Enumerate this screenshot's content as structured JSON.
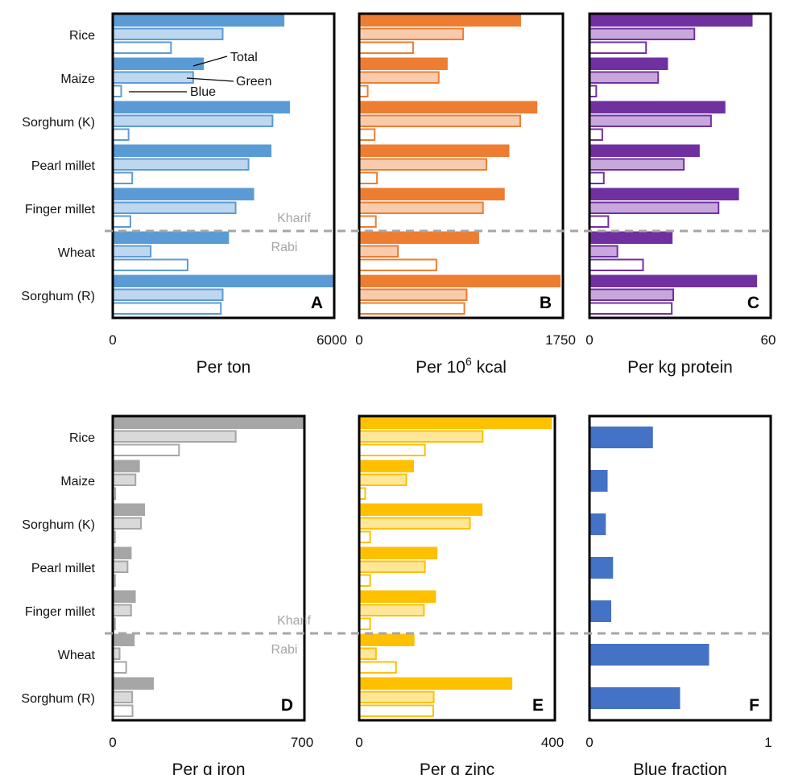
{
  "crops": [
    "Rice",
    "Maize",
    "Sorghum (K)",
    "Pearl millet",
    "Finger millet",
    "Wheat",
    "Sorghum (R)"
  ],
  "season_labels": {
    "kharif": "Kharif",
    "rabi": "Rabi"
  },
  "legend": {
    "total": "Total",
    "green": "Green",
    "blue": "Blue"
  },
  "chart_data": [
    {
      "panel": "A",
      "type": "bar",
      "orientation": "horizontal",
      "xlabel": "Per ton",
      "xlim": [
        0,
        6000
      ],
      "tick_labels": [
        "0",
        "6000"
      ],
      "color": "#5b9bd5",
      "light": "#bdd7ee",
      "series": [
        {
          "name": "Total",
          "values": [
            4650,
            2470,
            4800,
            4300,
            3830,
            3150,
            5970
          ]
        },
        {
          "name": "Green",
          "values": [
            3000,
            2200,
            4350,
            3700,
            3350,
            1050,
            3000
          ]
        },
        {
          "name": "Blue",
          "values": [
            1600,
            250,
            450,
            550,
            500,
            2050,
            2950
          ]
        }
      ]
    },
    {
      "panel": "B",
      "type": "bar",
      "orientation": "horizontal",
      "xlabel": "Per 10⁶ kcal",
      "xlim": [
        0,
        1750
      ],
      "tick_labels": [
        "0",
        "1750"
      ],
      "color": "#ed7d31",
      "light": "#f8cbad",
      "series": [
        {
          "name": "Total",
          "values": [
            1390,
            760,
            1530,
            1290,
            1250,
            1030,
            1730
          ]
        },
        {
          "name": "Green",
          "values": [
            900,
            690,
            1390,
            1100,
            1070,
            340,
            930
          ]
        },
        {
          "name": "Blue",
          "values": [
            470,
            80,
            140,
            160,
            150,
            670,
            910
          ]
        }
      ]
    },
    {
      "panel": "C",
      "type": "bar",
      "orientation": "horizontal",
      "xlabel": "Per kg protein",
      "xlim": [
        0,
        60
      ],
      "tick_labels": [
        "0",
        "60"
      ],
      "color": "#7030a0",
      "light": "#c8a8dc",
      "series": [
        {
          "name": "Total",
          "values": [
            54,
            26,
            45,
            36.5,
            49.5,
            27.5,
            55.5
          ]
        },
        {
          "name": "Green",
          "values": [
            35,
            23,
            40.5,
            31.5,
            43,
            9.5,
            28
          ]
        },
        {
          "name": "Blue",
          "values": [
            19,
            2.5,
            4.5,
            5,
            6.5,
            18,
            27.5
          ]
        }
      ]
    },
    {
      "panel": "D",
      "type": "bar",
      "orientation": "horizontal",
      "xlabel": "Per g iron",
      "xlim": [
        0,
        700
      ],
      "tick_labels": [
        "0",
        "700"
      ],
      "color": "#a6a6a6",
      "light": "#d9d9d9",
      "series": [
        {
          "name": "Total",
          "values": [
            697,
            99,
            118,
            69,
            84,
            80,
            150
          ]
        },
        {
          "name": "Green",
          "values": [
            452,
            86,
            106,
            57,
            70,
            28,
            74
          ]
        },
        {
          "name": "Blue",
          "values": [
            245,
            12,
            11,
            11,
            11,
            52,
            75
          ]
        }
      ]
    },
    {
      "panel": "E",
      "type": "bar",
      "orientation": "horizontal",
      "xlabel": "Per g zinc",
      "xlim": [
        0,
        400
      ],
      "tick_labels": [
        "0",
        "400"
      ],
      "color": "#ffc000",
      "light": "#ffe699",
      "series": [
        {
          "name": "Total",
          "values": [
            394,
            112,
            252,
            160,
            157,
            113,
            313
          ]
        },
        {
          "name": "Green",
          "values": [
            254,
            98,
            228,
            136,
            134,
            36,
            154
          ]
        },
        {
          "name": "Blue",
          "values": [
            136,
            14,
            24,
            24,
            24,
            77,
            153
          ]
        }
      ]
    },
    {
      "panel": "F",
      "type": "bar",
      "orientation": "horizontal",
      "xlabel": "Blue fraction",
      "xlim": [
        0,
        1
      ],
      "tick_labels": [
        "0",
        "1"
      ],
      "color": "#4472c4",
      "series": [
        {
          "name": "Blue fraction",
          "values": [
            0.35,
            0.1,
            0.09,
            0.13,
            0.12,
            0.66,
            0.5
          ]
        }
      ]
    }
  ]
}
